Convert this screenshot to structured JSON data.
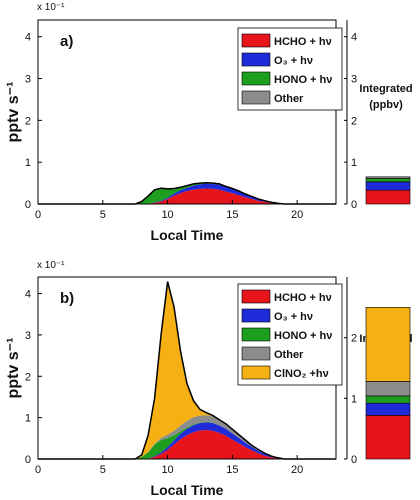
{
  "chart_data": [
    {
      "type": "area",
      "panel_label": "a)",
      "exponent_label": "x 10⁻¹",
      "xlabel": "Local Time",
      "ylabel": "pptv s⁻¹",
      "xlim": [
        0,
        23
      ],
      "ylim": [
        0,
        4.4
      ],
      "xticks": [
        "0",
        "5",
        "10",
        "15",
        "20"
      ],
      "yticks": [
        "0",
        "1",
        "2",
        "3",
        "4"
      ],
      "x": [
        0,
        7.5,
        8,
        8.5,
        9,
        9.5,
        10,
        10.5,
        11,
        11.5,
        12,
        12.5,
        13,
        13.5,
        14,
        14.5,
        15,
        15.5,
        16,
        16.5,
        17,
        17.5,
        18,
        18.5,
        19,
        19.5,
        20,
        23
      ],
      "series": [
        {
          "name": "HCHO + hν",
          "color": "#e8141c",
          "values": [
            0,
            0,
            0,
            0.01,
            0.03,
            0.06,
            0.12,
            0.2,
            0.26,
            0.31,
            0.34,
            0.36,
            0.37,
            0.36,
            0.34,
            0.3,
            0.26,
            0.21,
            0.16,
            0.12,
            0.08,
            0.05,
            0.03,
            0.01,
            0,
            0,
            0,
            0
          ]
        },
        {
          "name": "O₃ + hν",
          "color": "#1f2bd8",
          "values": [
            0,
            0,
            0,
            0,
            0.01,
            0.02,
            0.03,
            0.05,
            0.07,
            0.08,
            0.1,
            0.11,
            0.12,
            0.12,
            0.12,
            0.11,
            0.1,
            0.09,
            0.07,
            0.05,
            0.04,
            0.03,
            0.01,
            0.01,
            0,
            0,
            0,
            0
          ]
        },
        {
          "name": "HONO + hν",
          "color": "#1e9e1e",
          "values": [
            0,
            0,
            0.06,
            0.18,
            0.3,
            0.3,
            0.2,
            0.11,
            0.06,
            0.04,
            0.03,
            0.02,
            0.01,
            0.01,
            0.01,
            0,
            0,
            0,
            0,
            0,
            0,
            0,
            0,
            0,
            0,
            0,
            0,
            0
          ]
        },
        {
          "name": "Other",
          "color": "#8c8c8c",
          "values": [
            0,
            0,
            0,
            0,
            0,
            0,
            0.01,
            0.01,
            0.01,
            0.01,
            0.01,
            0.01,
            0.01,
            0.01,
            0.01,
            0.01,
            0.01,
            0.01,
            0.01,
            0.01,
            0,
            0,
            0,
            0,
            0,
            0,
            0,
            0
          ]
        }
      ],
      "integrated": {
        "title_line1": "Integrated",
        "title_line2": "(ppbv)",
        "ylim": [
          0,
          4.4
        ],
        "yticks": [
          "0",
          "1",
          "2",
          "3",
          "4"
        ],
        "values": [
          0.33,
          0.2,
          0.08,
          0.04
        ]
      }
    },
    {
      "type": "area",
      "panel_label": "b)",
      "exponent_label": "x 10⁻¹",
      "xlabel": "Local Time",
      "ylabel": "pptv s⁻¹",
      "xlim": [
        0,
        23
      ],
      "ylim": [
        0,
        4.4
      ],
      "xticks": [
        "0",
        "5",
        "10",
        "15",
        "20"
      ],
      "yticks": [
        "0",
        "1",
        "2",
        "3",
        "4"
      ],
      "x": [
        0,
        7.5,
        8,
        8.5,
        9,
        9.5,
        10,
        10.5,
        11,
        11.5,
        12,
        12.5,
        13,
        13.5,
        14,
        14.5,
        15,
        15.5,
        16,
        16.5,
        17,
        17.5,
        18,
        18.5,
        19,
        19.5,
        20,
        23
      ],
      "series": [
        {
          "name": "HCHO + hν",
          "color": "#e8141c",
          "values": [
            0,
            0,
            0,
            0.01,
            0.05,
            0.12,
            0.22,
            0.35,
            0.48,
            0.58,
            0.65,
            0.69,
            0.7,
            0.68,
            0.63,
            0.56,
            0.47,
            0.38,
            0.29,
            0.21,
            0.14,
            0.08,
            0.04,
            0.02,
            0,
            0,
            0,
            0
          ]
        },
        {
          "name": "O₃ + hν",
          "color": "#1f2bd8",
          "values": [
            0,
            0,
            0,
            0,
            0.02,
            0.04,
            0.07,
            0.1,
            0.13,
            0.15,
            0.17,
            0.18,
            0.19,
            0.19,
            0.18,
            0.17,
            0.15,
            0.13,
            0.11,
            0.08,
            0.06,
            0.04,
            0.02,
            0.01,
            0,
            0,
            0,
            0
          ]
        },
        {
          "name": "HONO + hν",
          "color": "#1e9e1e",
          "values": [
            0,
            0,
            0.05,
            0.15,
            0.28,
            0.3,
            0.22,
            0.12,
            0.06,
            0.03,
            0.02,
            0.01,
            0.01,
            0.01,
            0,
            0,
            0,
            0,
            0,
            0,
            0,
            0,
            0,
            0,
            0,
            0,
            0,
            0
          ]
        },
        {
          "name": "Other",
          "color": "#8c8c8c",
          "values": [
            0,
            0,
            0,
            0.01,
            0.02,
            0.05,
            0.08,
            0.11,
            0.14,
            0.16,
            0.17,
            0.17,
            0.16,
            0.15,
            0.14,
            0.12,
            0.1,
            0.08,
            0.06,
            0.04,
            0.03,
            0.02,
            0.01,
            0,
            0,
            0,
            0,
            0
          ]
        },
        {
          "name": "ClNO₂ +hν",
          "color": "#f5b014",
          "values": [
            0,
            0,
            0.05,
            0.4,
            1.1,
            2.5,
            3.7,
            3.0,
            1.8,
            0.9,
            0.4,
            0.15,
            0.06,
            0.02,
            0,
            0,
            0,
            0,
            0,
            0,
            0,
            0,
            0,
            0,
            0,
            0,
            0,
            0
          ]
        }
      ],
      "integrated": {
        "title_line1": "Integrated",
        "title_line2": "(ppbv)",
        "ylim": [
          0,
          3.0
        ],
        "yticks": [
          "0",
          "1",
          "2"
        ],
        "values": [
          0.72,
          0.2,
          0.12,
          0.24,
          1.22
        ]
      }
    }
  ]
}
